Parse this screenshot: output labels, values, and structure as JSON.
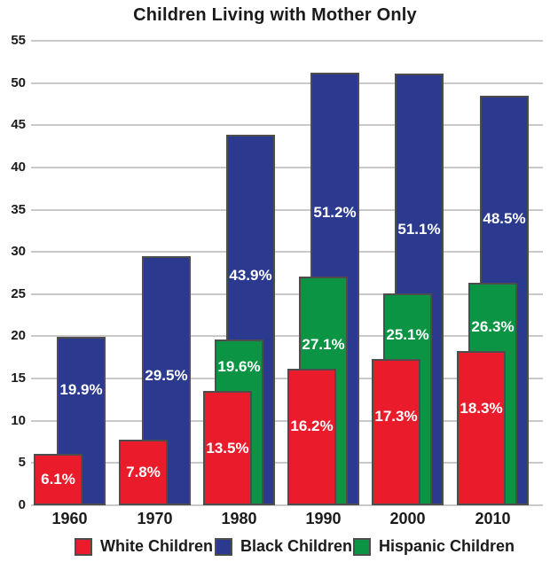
{
  "title": "Children Living with Mother Only",
  "chart_data": {
    "type": "bar",
    "title": "Children Living with Mother Only",
    "categories": [
      "1960",
      "1970",
      "1980",
      "1990",
      "2000",
      "2010"
    ],
    "series": [
      {
        "name": "White Children",
        "color": "#ea1c2c",
        "values": [
          6.1,
          7.8,
          13.5,
          16.2,
          17.3,
          18.3
        ]
      },
      {
        "name": "Black Children",
        "color": "#2b3a8f",
        "values": [
          19.9,
          29.5,
          43.9,
          51.2,
          51.1,
          48.5
        ]
      },
      {
        "name": "Hispanic Children",
        "color": "#0b9444",
        "values": [
          null,
          null,
          19.6,
          27.1,
          25.1,
          26.3
        ]
      }
    ],
    "value_labels": [
      [
        "6.1%",
        "7.8%",
        "13.5%",
        "16.2%",
        "17.3%",
        "18.3%"
      ],
      [
        "19.9%",
        "29.5%",
        "43.9%",
        "51.2%",
        "51.1%",
        "48.5%"
      ],
      [
        null,
        null,
        "19.6%",
        "27.1%",
        "25.1%",
        "26.3%"
      ]
    ],
    "yticks": [
      0,
      5,
      10,
      15,
      20,
      25,
      30,
      35,
      40,
      45,
      50,
      55
    ],
    "ylim": [
      0,
      55
    ],
    "grid": true,
    "legend_position": "bottom",
    "xlabel": "",
    "ylabel": ""
  },
  "colors": {
    "background": "#ffffff",
    "gridline": "#c9c9c9",
    "text": "#1b1b1b",
    "bar_border": "#4d4d4d",
    "value_label_text": "#ffffff"
  }
}
